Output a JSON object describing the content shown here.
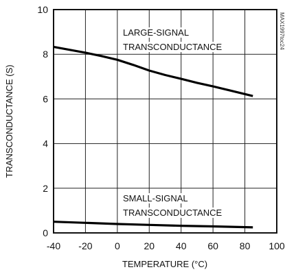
{
  "chart_data": {
    "type": "line",
    "title": "",
    "xlabel": "TEMPERATURE (°C)",
    "ylabel": "TRANSCONDUCTANCE (S)",
    "xlim": [
      -40,
      100
    ],
    "ylim": [
      0,
      10
    ],
    "xticks": [
      -40,
      -20,
      0,
      20,
      40,
      60,
      80,
      100
    ],
    "yticks": [
      0,
      2,
      4,
      6,
      8,
      10
    ],
    "xtick_labels": [
      "-40",
      "-20",
      "0",
      "20",
      "40",
      "60",
      "80",
      "100"
    ],
    "ytick_labels": [
      "0",
      "2",
      "4",
      "6",
      "8",
      "10"
    ],
    "grid": true,
    "series": [
      {
        "label_lines": [
          "LARGE-SIGNAL",
          "TRANSCONDUCTANCE"
        ],
        "x": [
          -40,
          -30,
          -20,
          -10,
          0,
          10,
          20,
          30,
          40,
          50,
          60,
          70,
          85
        ],
        "y": [
          8.33,
          8.2,
          8.07,
          7.92,
          7.75,
          7.52,
          7.27,
          7.07,
          6.9,
          6.72,
          6.56,
          6.39,
          6.13
        ]
      },
      {
        "label_lines": [
          "SMALL-SIGNAL",
          "TRANSCONDUCTANCE"
        ],
        "x": [
          -40,
          -20,
          0,
          20,
          40,
          60,
          85
        ],
        "y": [
          0.5,
          0.45,
          0.4,
          0.36,
          0.32,
          0.29,
          0.25
        ]
      }
    ],
    "side_code": "MAX1997toc24"
  }
}
